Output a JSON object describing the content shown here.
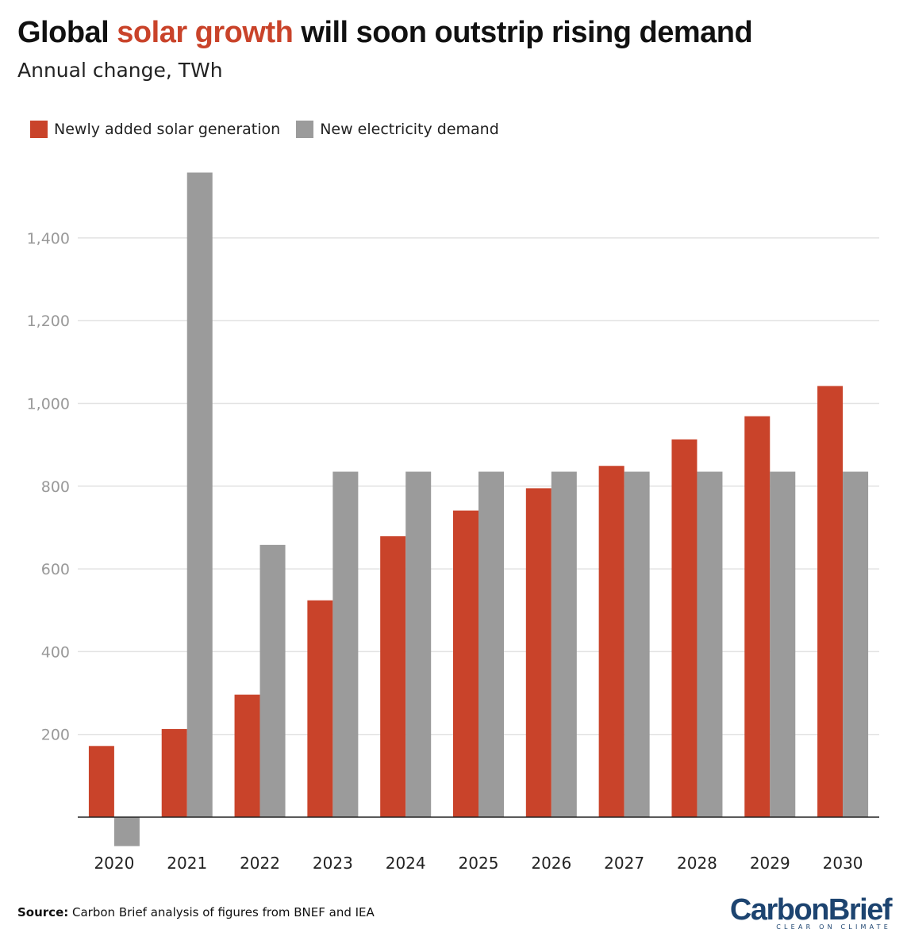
{
  "header": {
    "title_pre": "Global ",
    "title_highlight": "solar growth",
    "title_post": " will soon outstrip rising demand",
    "subtitle": "Annual change, TWh"
  },
  "colors": {
    "solar": "#c9432a",
    "demand": "#9b9b9b",
    "grid": "#e2e2e2",
    "axis": "#222222",
    "tick_label": "#999999",
    "brand": "#1d4470"
  },
  "chart_data": {
    "type": "bar",
    "title": "Global solar growth will soon outstrip rising demand",
    "subtitle": "Annual change, TWh",
    "xlabel": "",
    "ylabel": "",
    "categories": [
      "2020",
      "2021",
      "2022",
      "2023",
      "2024",
      "2025",
      "2026",
      "2027",
      "2028",
      "2029",
      "2030"
    ],
    "series": [
      {
        "name": "Newly added solar generation",
        "values": [
          172,
          213,
          296,
          524,
          679,
          741,
          795,
          849,
          913,
          969,
          1042
        ]
      },
      {
        "name": "New electricity demand",
        "values": [
          -70,
          1558,
          658,
          835,
          835,
          835,
          835,
          835,
          835,
          835,
          835
        ]
      }
    ],
    "ylim": [
      -80,
      1600
    ],
    "yticks": [
      200,
      400,
      600,
      800,
      1000,
      1200,
      1400
    ],
    "ytick_labels": [
      "200",
      "400",
      "600",
      "800",
      "1,000",
      "1,200",
      "1,400"
    ],
    "grid": true,
    "legend_position": "top-left"
  },
  "footer": {
    "source_label": "Source:",
    "source_text": " Carbon Brief analysis of figures from BNEF and IEA"
  },
  "logo": {
    "name": "CarbonBrief",
    "tagline": "CLEAR ON CLIMATE"
  }
}
